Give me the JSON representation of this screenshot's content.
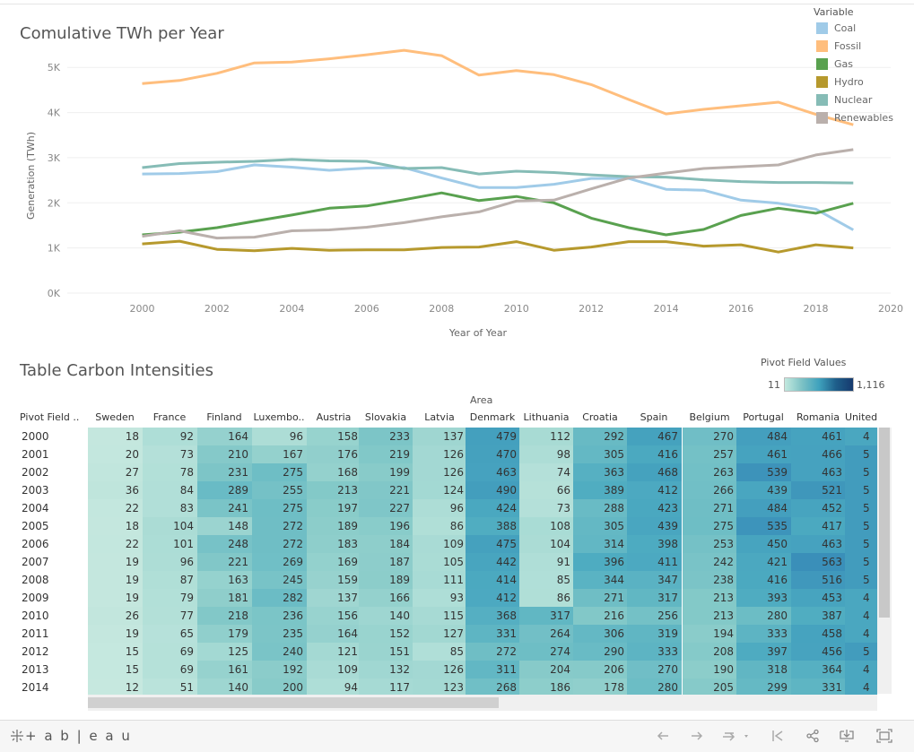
{
  "line_chart": {
    "title": "Comulative TWh per Year",
    "legend_title": "Variable",
    "chart_data": {
      "type": "line",
      "title": "Comulative TWh per Year",
      "xlabel": "Year of Year",
      "ylabel": "Generation (TWh)",
      "xlim": [
        1998,
        2020
      ],
      "ylim": [
        0,
        5600
      ],
      "x_ticks": [
        "2000",
        "2002",
        "2004",
        "2006",
        "2008",
        "2010",
        "2012",
        "2014",
        "2016",
        "2018",
        "2020"
      ],
      "y_ticks": [
        "0K",
        "1K",
        "2K",
        "3K",
        "4K",
        "5K"
      ],
      "grid": true,
      "legend": "top-right",
      "x": [
        2000,
        2001,
        2002,
        2003,
        2004,
        2005,
        2006,
        2007,
        2008,
        2009,
        2010,
        2011,
        2012,
        2013,
        2014,
        2015,
        2016,
        2017,
        2018,
        2019
      ],
      "series": [
        {
          "name": "Coal",
          "color": "#a0cbe8",
          "values": [
            2640,
            2650,
            2690,
            2840,
            2790,
            2720,
            2770,
            2780,
            2550,
            2340,
            2340,
            2410,
            2540,
            2540,
            2300,
            2280,
            2060,
            1990,
            1860,
            1400
          ]
        },
        {
          "name": "Fossil",
          "color": "#ffbe7d",
          "values": [
            4640,
            4710,
            4870,
            5100,
            5120,
            5190,
            5280,
            5380,
            5260,
            4830,
            4930,
            4840,
            4620,
            4290,
            3970,
            4070,
            4150,
            4230,
            3960,
            3730
          ]
        },
        {
          "name": "Gas",
          "color": "#59a14f",
          "values": [
            1290,
            1350,
            1450,
            1590,
            1730,
            1880,
            1930,
            2070,
            2220,
            2050,
            2140,
            2000,
            1660,
            1450,
            1290,
            1410,
            1720,
            1880,
            1770,
            1990
          ]
        },
        {
          "name": "Hydro",
          "color": "#b6992d",
          "values": [
            1090,
            1150,
            970,
            940,
            990,
            950,
            960,
            960,
            1010,
            1020,
            1140,
            950,
            1020,
            1140,
            1140,
            1040,
            1070,
            910,
            1070,
            1000
          ]
        },
        {
          "name": "Nuclear",
          "color": "#86bcb6",
          "values": [
            2780,
            2870,
            2900,
            2920,
            2960,
            2930,
            2920,
            2760,
            2780,
            2640,
            2700,
            2670,
            2620,
            2580,
            2570,
            2510,
            2470,
            2450,
            2450,
            2440
          ]
        },
        {
          "name": "Renewables",
          "color": "#bab0ac",
          "values": [
            1260,
            1380,
            1220,
            1240,
            1380,
            1400,
            1460,
            1560,
            1690,
            1800,
            2040,
            2060,
            2310,
            2550,
            2660,
            2760,
            2800,
            2840,
            3060,
            3180
          ]
        }
      ]
    }
  },
  "table": {
    "title": "Table Carbon Intensities",
    "color_legend_title": "Pivot Field Values",
    "color_min": "11",
    "color_max": "1,116",
    "area_label": "Area",
    "row_header": "Pivot Field ..",
    "columns": [
      "Sweden",
      "France",
      "Finland",
      "Luxembo..",
      "Austria",
      "Slovakia",
      "Latvia",
      "Denmark",
      "Lithuania",
      "Croatia",
      "Spain",
      "Belgium",
      "Portugal",
      "Romania",
      "United .."
    ],
    "rows": [
      {
        "year": "2000",
        "values": [
          18,
          92,
          164,
          96,
          158,
          233,
          137,
          479,
          112,
          292,
          467,
          270,
          484,
          461,
          "4"
        ]
      },
      {
        "year": "2001",
        "values": [
          20,
          73,
          210,
          167,
          176,
          219,
          126,
          470,
          98,
          305,
          416,
          257,
          461,
          466,
          "5"
        ]
      },
      {
        "year": "2002",
        "values": [
          27,
          78,
          231,
          275,
          168,
          199,
          126,
          463,
          74,
          363,
          468,
          263,
          539,
          463,
          "5"
        ]
      },
      {
        "year": "2003",
        "values": [
          36,
          84,
          289,
          255,
          213,
          221,
          124,
          490,
          66,
          389,
          412,
          266,
          439,
          521,
          "5"
        ]
      },
      {
        "year": "2004",
        "values": [
          22,
          83,
          241,
          275,
          197,
          227,
          96,
          424,
          73,
          288,
          423,
          271,
          484,
          452,
          "5"
        ]
      },
      {
        "year": "2005",
        "values": [
          18,
          104,
          148,
          272,
          189,
          196,
          86,
          388,
          108,
          305,
          439,
          275,
          535,
          417,
          "5"
        ]
      },
      {
        "year": "2006",
        "values": [
          22,
          101,
          248,
          272,
          183,
          184,
          109,
          475,
          104,
          314,
          398,
          253,
          450,
          463,
          "5"
        ]
      },
      {
        "year": "2007",
        "values": [
          19,
          96,
          221,
          269,
          169,
          187,
          105,
          442,
          91,
          396,
          411,
          242,
          421,
          563,
          "5"
        ]
      },
      {
        "year": "2008",
        "values": [
          19,
          87,
          163,
          245,
          159,
          189,
          111,
          414,
          85,
          344,
          347,
          238,
          416,
          516,
          "5"
        ]
      },
      {
        "year": "2009",
        "values": [
          19,
          79,
          181,
          282,
          137,
          166,
          93,
          412,
          86,
          271,
          317,
          213,
          393,
          453,
          "4"
        ]
      },
      {
        "year": "2010",
        "values": [
          26,
          77,
          218,
          236,
          156,
          140,
          115,
          368,
          317,
          216,
          256,
          213,
          280,
          387,
          "4"
        ]
      },
      {
        "year": "2011",
        "values": [
          19,
          65,
          179,
          235,
          164,
          152,
          127,
          331,
          264,
          306,
          319,
          194,
          333,
          458,
          "4"
        ]
      },
      {
        "year": "2012",
        "values": [
          15,
          69,
          125,
          240,
          121,
          151,
          85,
          272,
          274,
          290,
          333,
          208,
          397,
          456,
          "5"
        ]
      },
      {
        "year": "2013",
        "values": [
          15,
          69,
          161,
          192,
          109,
          132,
          126,
          311,
          204,
          206,
          270,
          190,
          318,
          364,
          "4"
        ]
      },
      {
        "year": "2014",
        "values": [
          12,
          51,
          140,
          200,
          94,
          117,
          123,
          268,
          186,
          178,
          280,
          205,
          299,
          331,
          "4"
        ]
      }
    ]
  },
  "toolbar": {
    "logo_text": "+ a b | e a u",
    "icons": [
      "undo-icon",
      "redo-icon",
      "revert-icon",
      "pause-icon",
      "share-icon",
      "download-icon",
      "fullscreen-icon"
    ]
  }
}
